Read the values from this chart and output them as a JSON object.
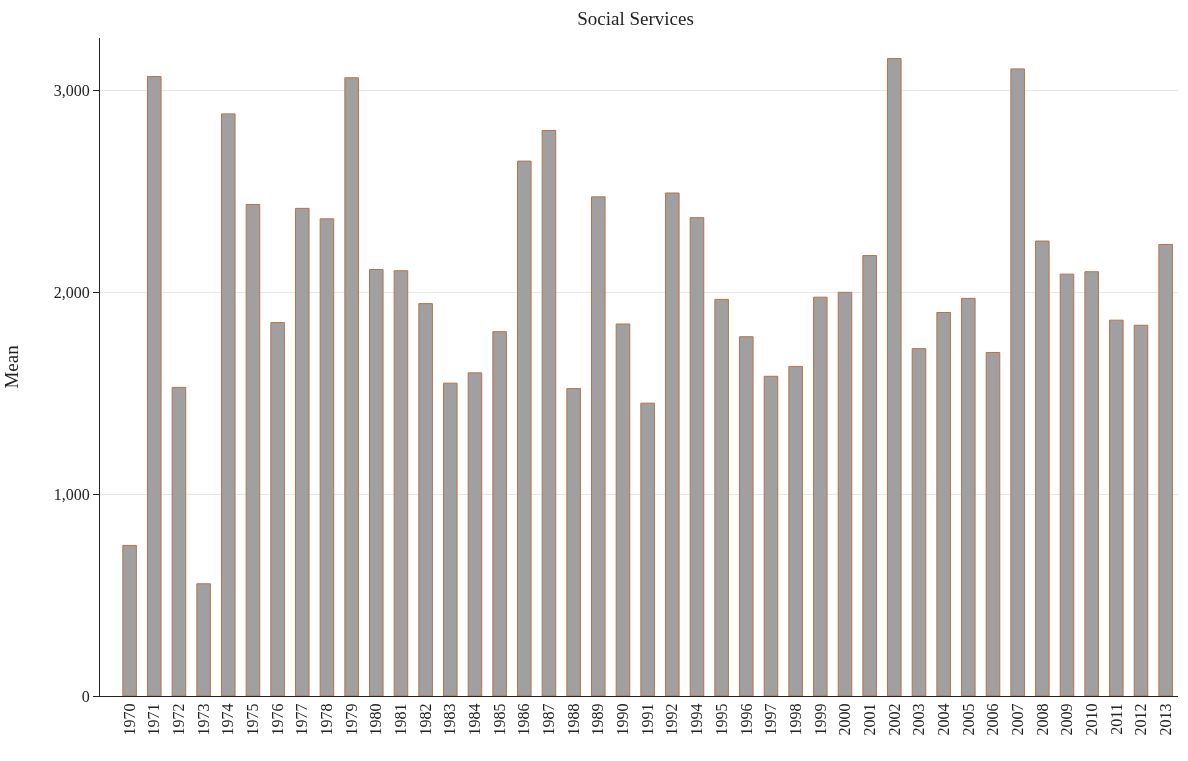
{
  "chart_data": {
    "type": "bar",
    "title": "Social Services",
    "ylabel": "Mean",
    "categories": [
      "1970",
      "1971",
      "1972",
      "1973",
      "1974",
      "1975",
      "1976",
      "1977",
      "1978",
      "1979",
      "1980",
      "1981",
      "1982",
      "1983",
      "1984",
      "1985",
      "1986",
      "1987",
      "1988",
      "1989",
      "1990",
      "1991",
      "1992",
      "1994",
      "1995",
      "1996",
      "1997",
      "1998",
      "1999",
      "2000",
      "2001",
      "2002",
      "2003",
      "2004",
      "2005",
      "2006",
      "2007",
      "2008",
      "2009",
      "2010",
      "2011",
      "2012",
      "2013"
    ],
    "values": [
      746,
      3069,
      1529,
      556,
      2884,
      2435,
      1850,
      2416,
      2364,
      3063,
      2113,
      2107,
      1944,
      1550,
      1601,
      1805,
      2650,
      2802,
      1523,
      2473,
      1843,
      1451,
      2492,
      2370,
      1965,
      1780,
      1584,
      1633,
      1976,
      2000,
      2182,
      3158,
      1721,
      1900,
      1970,
      1702,
      3107,
      2254,
      2090,
      2102,
      1862,
      1837,
      2237
    ],
    "color": "#a0a0a0",
    "ylim": [
      0,
      3260
    ],
    "yticks": [
      0,
      {
        "value": 1000,
        "label": "1,000"
      },
      {
        "value": 2000,
        "label": "2,000"
      },
      {
        "value": 3000,
        "label": "3,000"
      }
    ],
    "grid": "y",
    "legend": false
  }
}
